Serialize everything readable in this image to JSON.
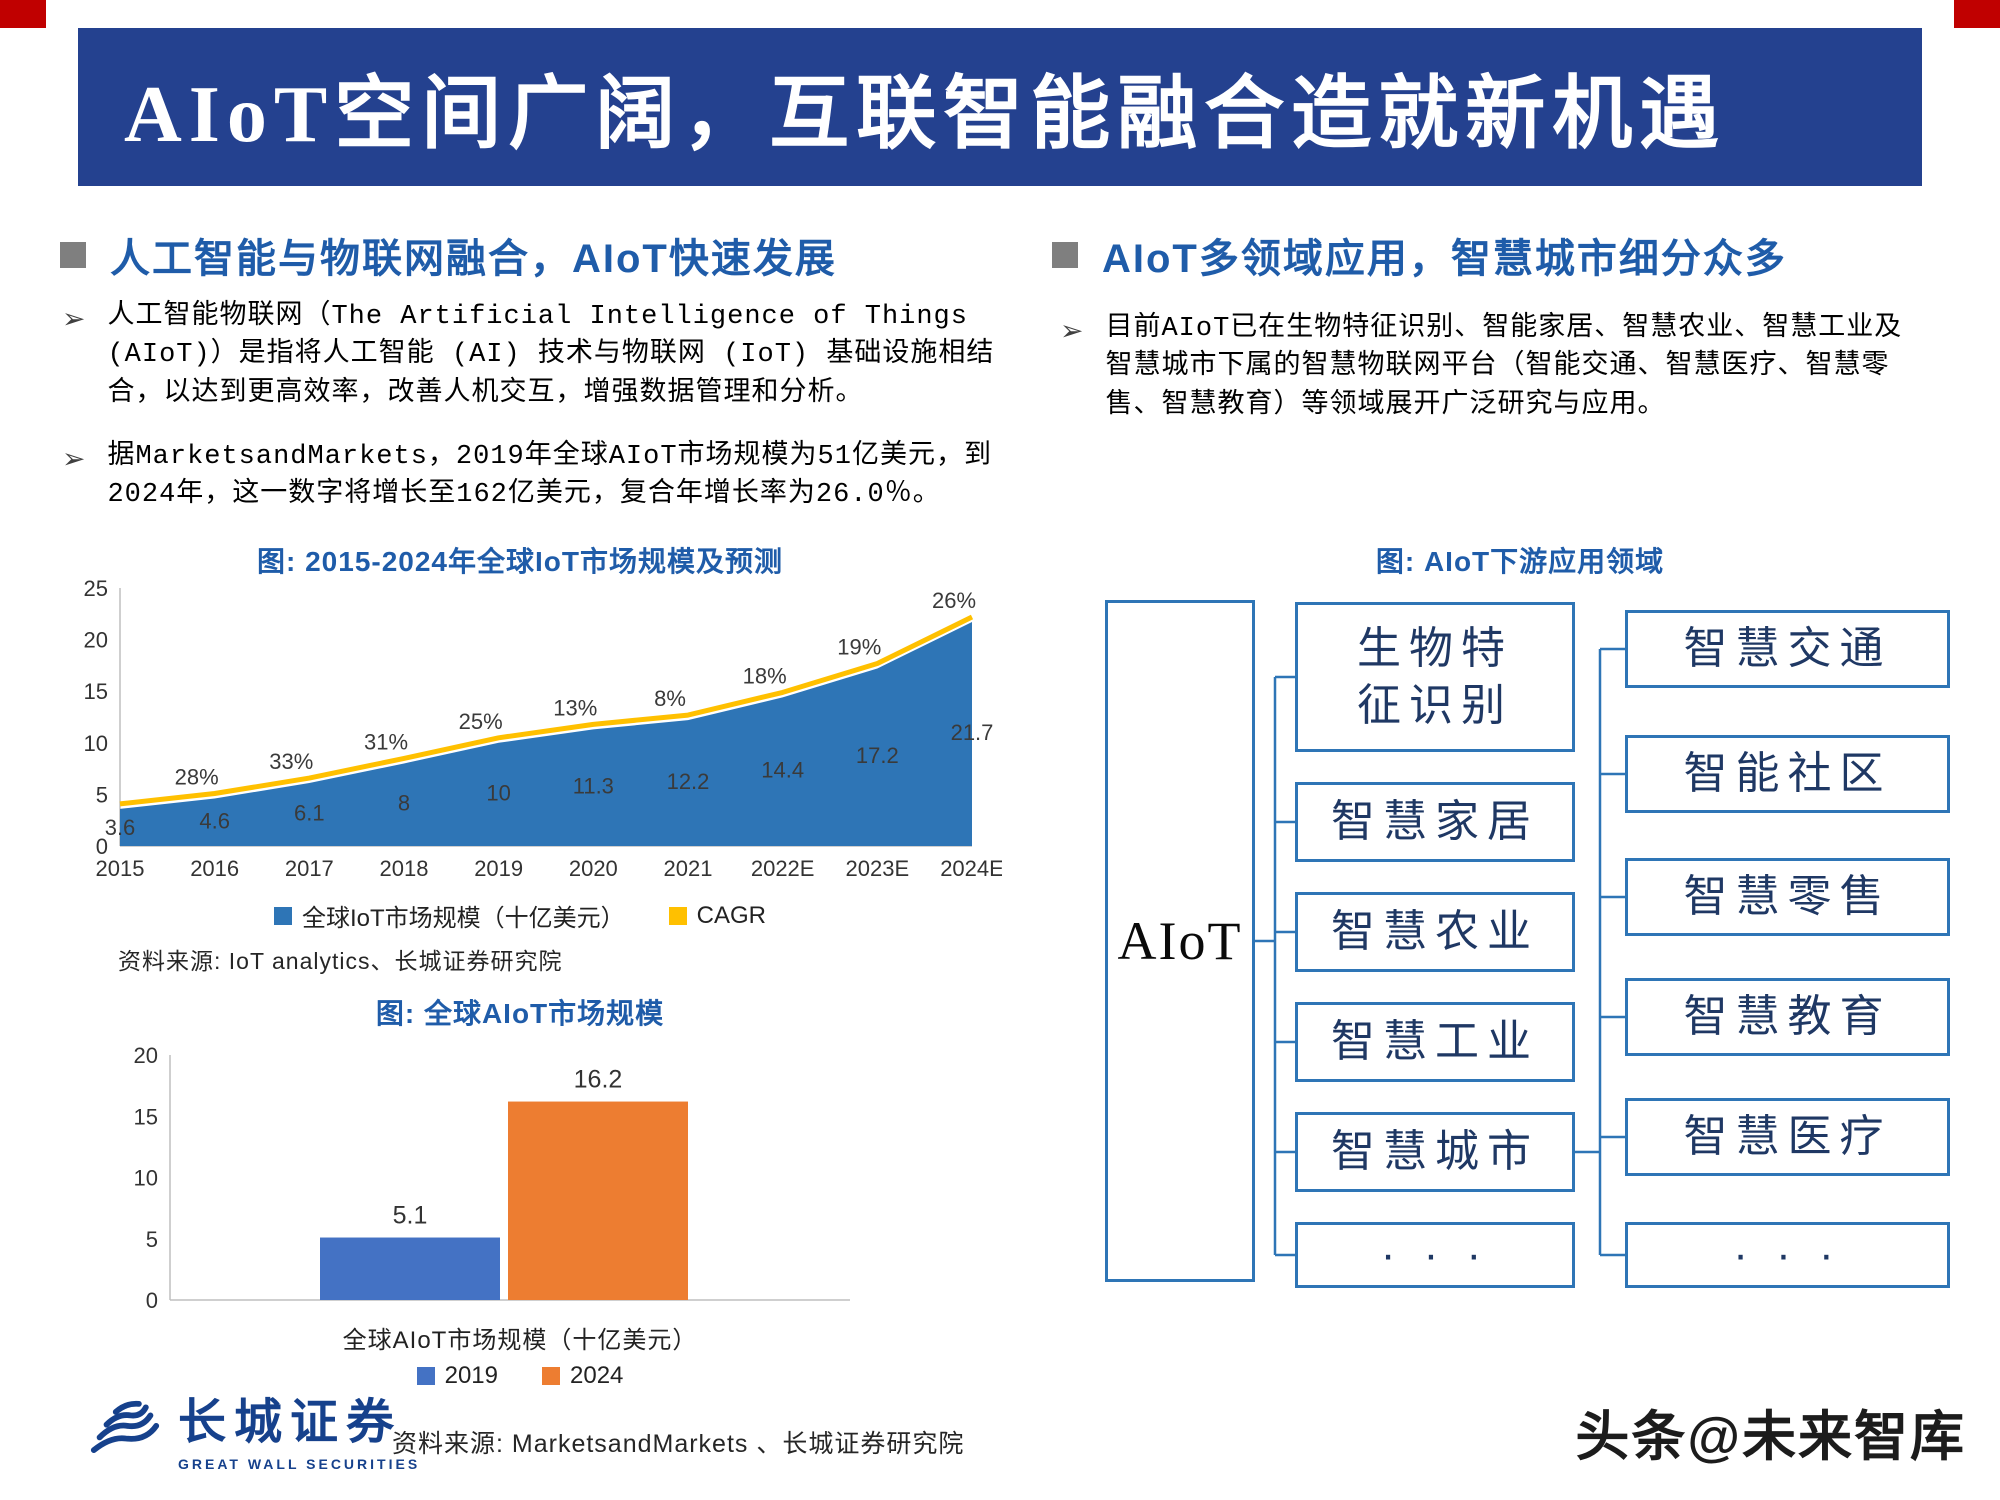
{
  "title": "AIoT空间广阔，互联智能融合造就新机遇",
  "watermark": "头条@未来智库",
  "logo": {
    "name": "长城证券",
    "subtitle": "GREAT WALL SECURITIES"
  },
  "left": {
    "header": "人工智能与物联网融合，AIoT快速发展",
    "bullets": [
      "人工智能物联网（The Artificial Intelligence of Things (AIoT)）是指将人工智能 (AI) 技术与物联网 (IoT) 基础设施相结合，以达到更高效率，改善人机交互，增强数据管理和分析。",
      "据MarketsandMarkets，2019年全球AIoT市场规模为51亿美元，到2024年，这一数字将增长至162亿美元，复合年增长率为26.0％。"
    ]
  },
  "right": {
    "header": "AIoT多领域应用，智慧城市细分众多",
    "bullets": [
      "目前AIoT已在生物特征识别、智能家居、智慧农业、智慧工业及智慧城市下属的智慧物联网平台（智能交通、智慧医疗、智慧零售、智慧教育）等领域展开广泛研究与应用。"
    ]
  },
  "chart_data": [
    {
      "id": "iot_market_area",
      "type": "area",
      "title": "图: 2015-2024年全球IoT市场规模及预测",
      "categories": [
        "2015",
        "2016",
        "2017",
        "2018",
        "2019",
        "2020",
        "2021",
        "2022E",
        "2023E",
        "2024E"
      ],
      "series": [
        {
          "name": "全球IoT市场规模（十亿美元）",
          "values": [
            3.6,
            4.6,
            6.1,
            8,
            10,
            11.3,
            12.2,
            14.4,
            17.2,
            21.7
          ],
          "color": "#2E75B6"
        },
        {
          "name": "CAGR",
          "values": [
            null,
            28,
            33,
            31,
            25,
            13,
            8,
            18,
            19,
            26
          ],
          "unit": "%",
          "color": "#FFC000"
        }
      ],
      "ylim": [
        0,
        25
      ],
      "yticks": [
        0,
        5,
        10,
        15,
        20,
        25
      ],
      "legend": [
        "全球IoT市场规模（十亿美元）",
        "CAGR"
      ],
      "legend_position": "bottom",
      "grid": false,
      "source": "资料来源: IoT analytics、长城证券研究院"
    },
    {
      "id": "aiot_market_bar",
      "type": "bar",
      "title": "图: 全球AIoT市场规模",
      "categories": [
        "2019",
        "2024"
      ],
      "values": [
        5.1,
        16.2
      ],
      "colors": [
        "#4472C4",
        "#ED7D31"
      ],
      "ylim": [
        0,
        20
      ],
      "yticks": [
        0,
        5,
        10,
        15,
        20
      ],
      "xlabel": "全球AIoT市场规模（十亿美元）",
      "legend": [
        "2019",
        "2024"
      ],
      "legend_position": "bottom",
      "grid": false,
      "source": "资料来源: MarketsandMarkets 、长城证券研究院"
    }
  ],
  "diagram": {
    "title": "图: AIoT下游应用领域",
    "root": "AIoT",
    "level1": [
      "生物特征识别",
      "智慧家居",
      "智慧农业",
      "智慧工业",
      "智慧城市",
      "· · ·"
    ],
    "level2": [
      "智慧交通",
      "智能社区",
      "智慧零售",
      "智慧教育",
      "智慧医疗",
      "· · ·"
    ]
  },
  "colors": {
    "banner_blue": "#24418F",
    "accent_red": "#C00000",
    "header_blue": "#1F5CA9",
    "bullet_gray": "#7F7F7F",
    "area_blue": "#2E75B6",
    "cagr_orange": "#FFC000",
    "bar_blue_2019": "#4472C4",
    "bar_orange_2024": "#ED7D31",
    "diagram_border": "#2E75B6",
    "logo_blue": "#16418C"
  }
}
